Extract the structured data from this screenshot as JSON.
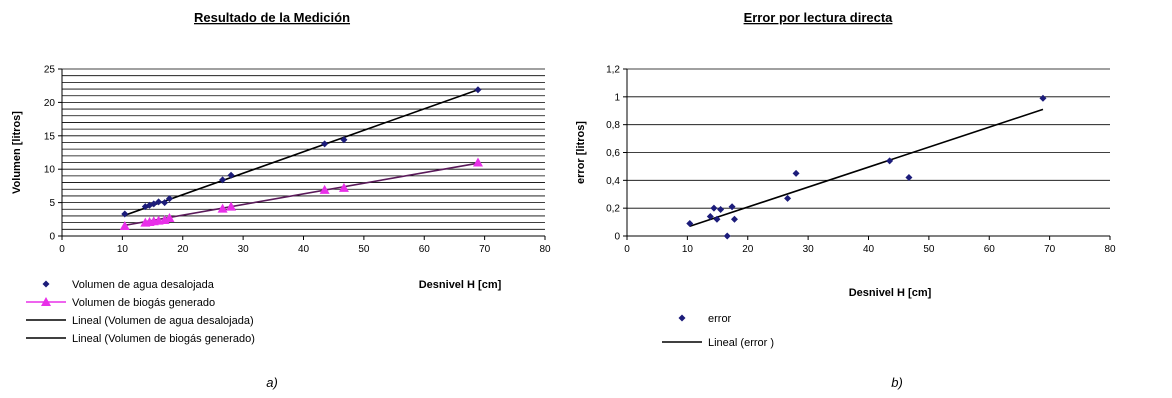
{
  "chart_data": [
    {
      "type": "scatter",
      "title": "Resultado de la Medición",
      "xlabel": "Desnivel H [cm]",
      "ylabel": "Volumen [litros]",
      "xlim": [
        0,
        80
      ],
      "ylim": [
        0,
        25
      ],
      "xticks": [
        "0",
        "10",
        "20",
        "30",
        "40",
        "50",
        "60",
        "70",
        "80"
      ],
      "yticks": [
        "0",
        "5",
        "10",
        "15",
        "20",
        "25"
      ],
      "grid": "horizontal",
      "legend_position": "bottom",
      "caption": "a)",
      "series": [
        {
          "name": "Volumen de agua desalojada",
          "marker": "diamond",
          "color": "#1c1c7a",
          "x": [
            10.4,
            13.8,
            14.5,
            15.2,
            16.0,
            17.0,
            17.8,
            26.6,
            28.0,
            43.5,
            46.7,
            68.9
          ],
          "y": [
            3.3,
            4.4,
            4.6,
            4.8,
            5.1,
            5.0,
            5.6,
            8.4,
            9.1,
            13.8,
            14.4,
            21.9
          ]
        },
        {
          "name": "Volumen de biogás generado",
          "marker": "triangle",
          "color": "#e830e8",
          "x": [
            10.4,
            13.8,
            14.5,
            15.2,
            16.0,
            17.0,
            17.8,
            26.6,
            28.0,
            43.5,
            46.7,
            68.9
          ],
          "y": [
            1.5,
            2.0,
            2.1,
            2.2,
            2.3,
            2.4,
            2.7,
            4.1,
            4.4,
            6.9,
            7.2,
            11.0
          ]
        }
      ],
      "trendlines": [
        {
          "name": "Lineal (Volumen de agua desalojada)",
          "color": "#000000",
          "x": [
            10.4,
            68.9
          ],
          "y": [
            3.1,
            21.9
          ]
        },
        {
          "name": "Lineal (Volumen de biogás generado)",
          "color": "#5a1a5a",
          "x": [
            10.4,
            68.9
          ],
          "y": [
            1.6,
            10.9
          ]
        }
      ]
    },
    {
      "type": "scatter",
      "title": "Error por lectura directa",
      "xlabel": "Desnivel H [cm]",
      "ylabel": "error [litros]",
      "xlim": [
        0,
        80
      ],
      "ylim": [
        0,
        1.2
      ],
      "xticks": [
        "0",
        "10",
        "20",
        "30",
        "40",
        "50",
        "60",
        "70",
        "80"
      ],
      "yticks": [
        "0",
        "0,2",
        "0,4",
        "0,6",
        "0,8",
        "1",
        "1,2"
      ],
      "grid": "horizontal",
      "legend_position": "bottom",
      "caption": "b)",
      "series": [
        {
          "name": "error",
          "marker": "diamond",
          "color": "#1c1c7a",
          "x": [
            10.4,
            13.8,
            14.4,
            14.9,
            15.5,
            16.6,
            17.4,
            17.8,
            26.6,
            28.0,
            43.5,
            46.7,
            68.9
          ],
          "y": [
            0.09,
            0.14,
            0.2,
            0.12,
            0.19,
            0.0,
            0.21,
            0.12,
            0.27,
            0.45,
            0.54,
            0.42,
            0.99
          ]
        }
      ],
      "trendlines": [
        {
          "name": "Lineal (error )",
          "color": "#000000",
          "x": [
            10.4,
            68.9
          ],
          "y": [
            0.07,
            0.91
          ]
        }
      ]
    }
  ]
}
